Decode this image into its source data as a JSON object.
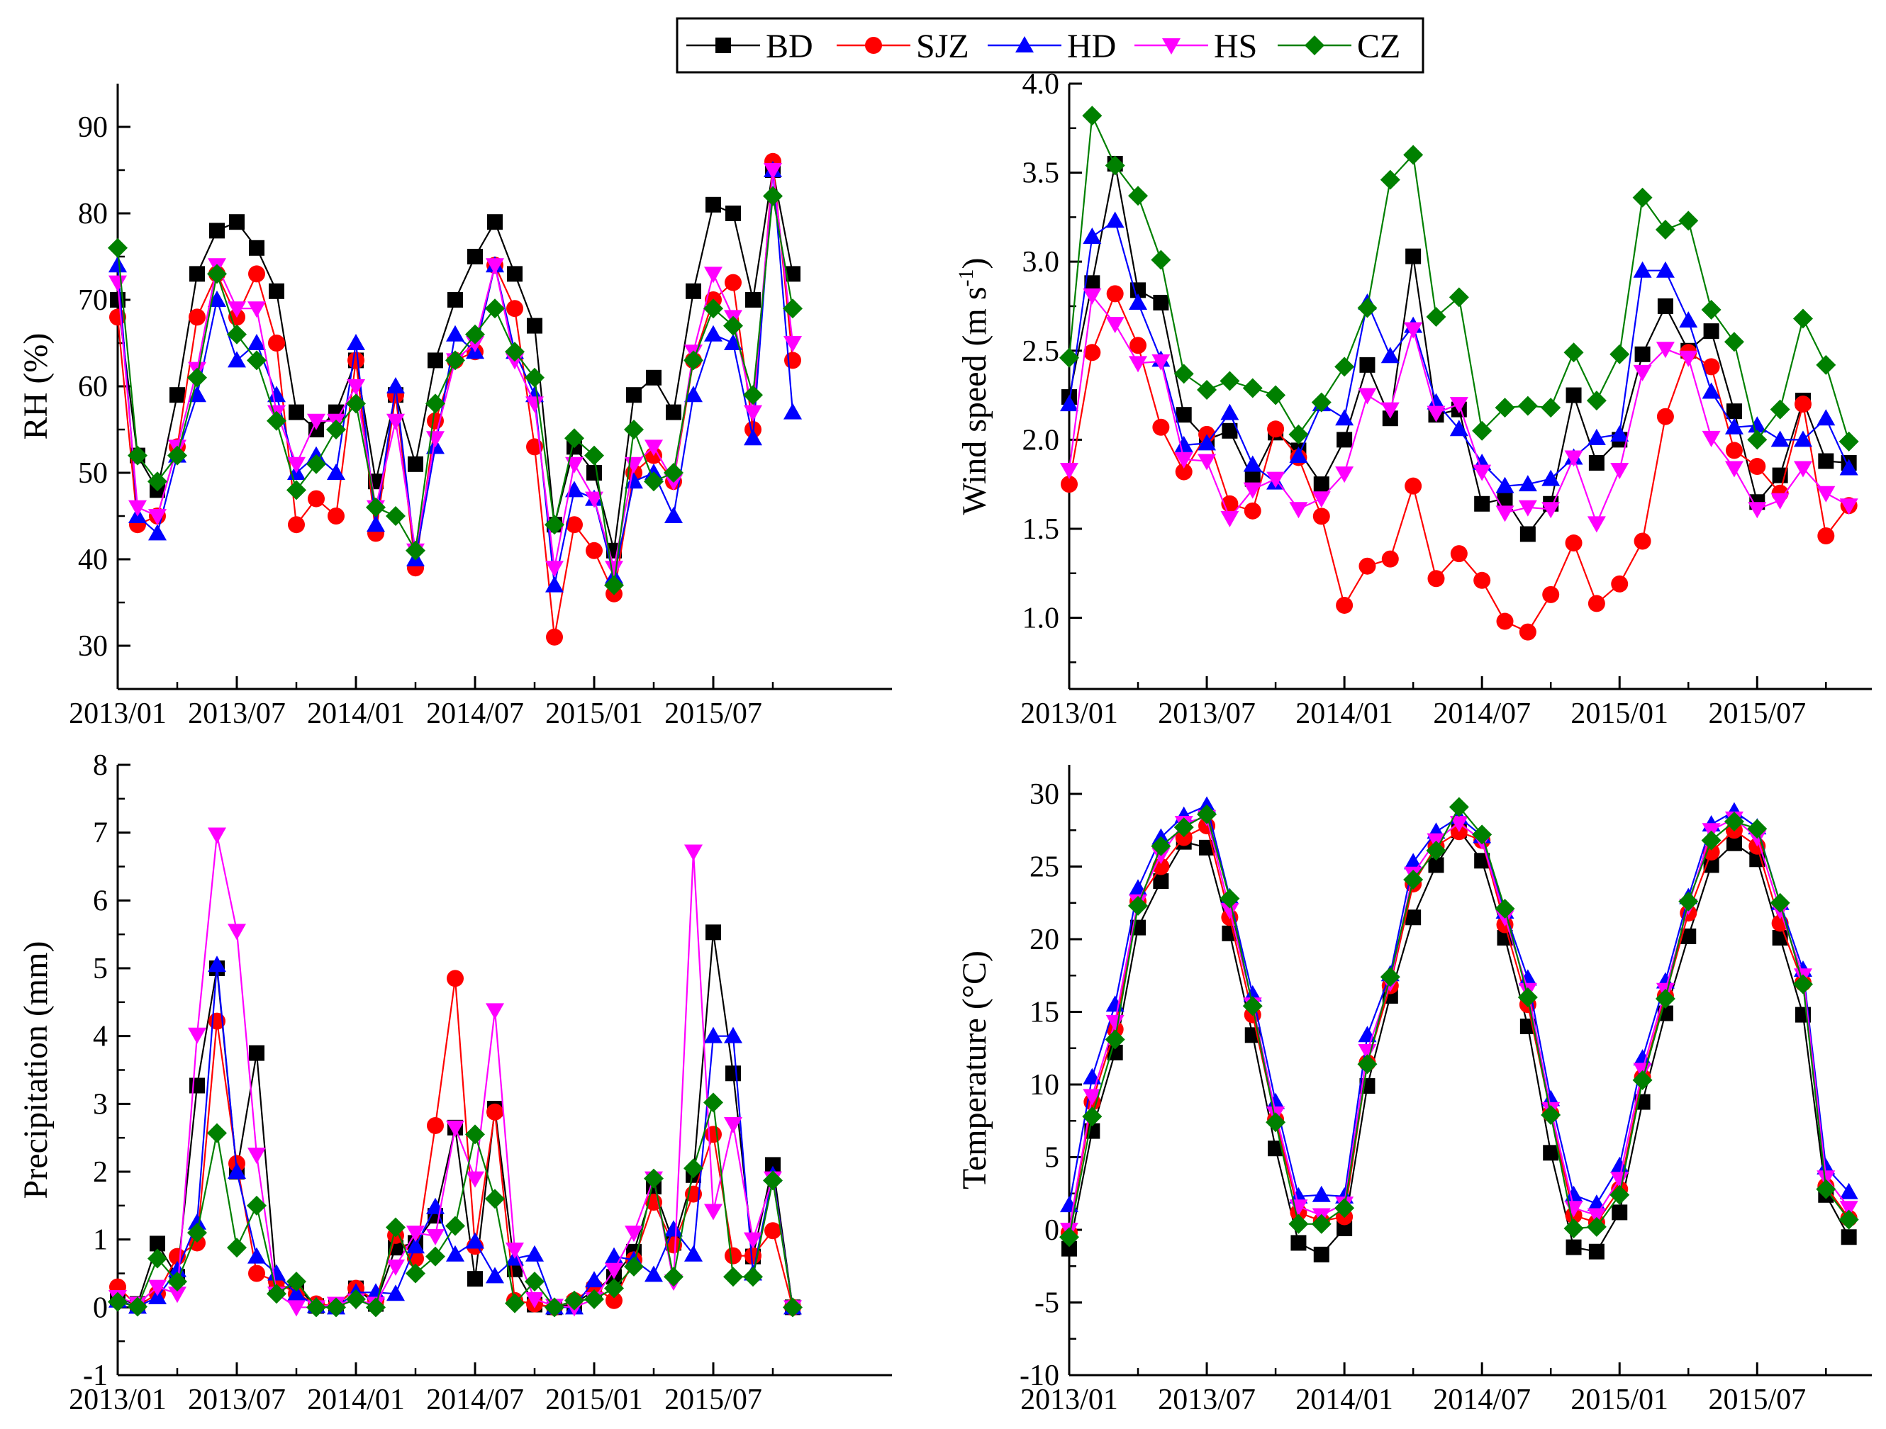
{
  "legend": {
    "entries": [
      {
        "name": "BD",
        "color": "#000000",
        "marker": "square"
      },
      {
        "name": "SJZ",
        "color": "#ff0000",
        "marker": "circle"
      },
      {
        "name": "HD",
        "color": "#0000ff",
        "marker": "triangle-up"
      },
      {
        "name": "HS",
        "color": "#ff00ff",
        "marker": "triangle-down"
      },
      {
        "name": "CZ",
        "color": "#008000",
        "marker": "diamond"
      }
    ]
  },
  "chart_data": [
    {
      "type": "line",
      "ylabel": "RH (%)",
      "xlabel": "",
      "ylim": [
        25,
        95
      ],
      "yticks": [
        30,
        40,
        50,
        60,
        70,
        80,
        90
      ],
      "x_tick_labels": [
        "2013/01",
        "2013/07",
        "2014/01",
        "2014/07",
        "2015/01",
        "2015/07"
      ],
      "x_tick_month_index": [
        0,
        6,
        12,
        18,
        24,
        30
      ],
      "xlim_month_index": [
        0,
        39
      ],
      "series": [
        {
          "name": "BD",
          "values": [
            70,
            52,
            48,
            59,
            73,
            78,
            79,
            76,
            71,
            57,
            55,
            57,
            63,
            49,
            59,
            51,
            63,
            70,
            75,
            79,
            73,
            67,
            44,
            53,
            50,
            41,
            59,
            61,
            57,
            71,
            81,
            80,
            70,
            85,
            73
          ]
        },
        {
          "name": "SJZ",
          "values": [
            68,
            44,
            45,
            53,
            68,
            73,
            68,
            73,
            65,
            44,
            47,
            45,
            63,
            43,
            59,
            39,
            56,
            63,
            64,
            74,
            69,
            53,
            31,
            44,
            41,
            36,
            50,
            52,
            49,
            63,
            70,
            72,
            55,
            86,
            63
          ]
        },
        {
          "name": "HD",
          "values": [
            74,
            45,
            43,
            52,
            59,
            70,
            63,
            65,
            59,
            50,
            52,
            50,
            65,
            44,
            60,
            40,
            53,
            66,
            64,
            74,
            64,
            59,
            37,
            48,
            47,
            38,
            49,
            50,
            45,
            59,
            66,
            65,
            54,
            85,
            57
          ]
        },
        {
          "name": "HS",
          "values": [
            72,
            46,
            45,
            53,
            62,
            74,
            69,
            69,
            57,
            51,
            56,
            56,
            60,
            46,
            56,
            41,
            54,
            63,
            65,
            74,
            63,
            58,
            39,
            51,
            47,
            39,
            51,
            53,
            49,
            64,
            73,
            68,
            57,
            85,
            65
          ]
        },
        {
          "name": "CZ",
          "values": [
            76,
            52,
            49,
            52,
            61,
            73,
            66,
            63,
            56,
            48,
            51,
            55,
            58,
            46,
            45,
            41,
            58,
            63,
            66,
            69,
            64,
            61,
            44,
            54,
            52,
            37,
            55,
            49,
            50,
            63,
            69,
            67,
            59,
            82,
            69
          ]
        }
      ]
    },
    {
      "type": "line",
      "ylabel": "Wind speed (m s",
      "ylabel_sup": "-1",
      "ylabel_tail": ")",
      "xlabel": "",
      "ylim": [
        0.6,
        4.0
      ],
      "yticks": [
        1.0,
        1.5,
        2.0,
        2.5,
        3.0,
        3.5,
        4.0
      ],
      "ytick_labels": [
        "1.0",
        "1.5",
        "2.0",
        "2.5",
        "3.0",
        "3.5",
        "4.0"
      ],
      "x_tick_labels": [
        "2013/01",
        "2013/07",
        "2014/01",
        "2014/07",
        "2015/01",
        "2015/07"
      ],
      "x_tick_month_index": [
        0,
        6,
        12,
        18,
        24,
        30
      ],
      "xlim_month_index": [
        0,
        35
      ],
      "series": [
        {
          "name": "BD",
          "values": [
            2.24,
            2.88,
            3.55,
            2.84,
            2.77,
            2.14,
            2.0,
            2.05,
            1.78,
            2.04,
            1.94,
            1.75,
            2.0,
            2.42,
            2.12,
            3.03,
            2.14,
            2.17,
            1.64,
            1.67,
            1.47,
            1.64,
            2.25,
            1.87,
            2.0,
            2.48,
            2.75,
            2.5,
            2.61,
            2.16,
            1.65,
            1.8,
            2.22,
            1.88,
            1.87
          ]
        },
        {
          "name": "SJZ",
          "values": [
            1.75,
            2.49,
            2.82,
            2.53,
            2.07,
            1.82,
            2.03,
            1.64,
            1.6,
            2.06,
            1.9,
            1.57,
            1.07,
            1.29,
            1.33,
            1.74,
            1.22,
            1.36,
            1.21,
            0.98,
            0.92,
            1.13,
            1.42,
            1.08,
            1.19,
            1.43,
            2.13,
            2.49,
            2.41,
            1.94,
            1.85,
            1.7,
            2.2,
            1.46,
            1.63
          ]
        },
        {
          "name": "HD",
          "values": [
            2.2,
            3.14,
            3.23,
            2.77,
            2.45,
            1.97,
            1.98,
            2.15,
            1.86,
            1.76,
            1.91,
            2.2,
            2.12,
            2.77,
            2.47,
            2.64,
            2.21,
            2.06,
            1.87,
            1.74,
            1.75,
            1.78,
            1.9,
            2.01,
            2.03,
            2.95,
            2.95,
            2.67,
            2.27,
            2.07,
            2.08,
            2.0,
            2.0,
            2.12,
            1.84
          ]
        },
        {
          "name": "HS",
          "values": [
            1.83,
            2.81,
            2.65,
            2.43,
            2.44,
            1.89,
            1.88,
            1.56,
            1.72,
            1.78,
            1.61,
            1.67,
            1.81,
            2.25,
            2.17,
            2.62,
            2.15,
            2.2,
            1.82,
            1.59,
            1.62,
            1.61,
            1.9,
            1.53,
            1.83,
            2.38,
            2.51,
            2.46,
            2.01,
            1.84,
            1.61,
            1.66,
            1.84,
            1.7,
            1.63
          ]
        },
        {
          "name": "CZ",
          "values": [
            2.46,
            3.82,
            3.54,
            3.37,
            3.01,
            2.37,
            2.28,
            2.33,
            2.29,
            2.25,
            2.03,
            2.21,
            2.41,
            2.74,
            3.46,
            3.6,
            2.69,
            2.8,
            2.05,
            2.18,
            2.19,
            2.18,
            2.49,
            2.22,
            2.48,
            3.36,
            3.18,
            3.23,
            2.73,
            2.55,
            2.0,
            2.17,
            2.68,
            2.42,
            1.99
          ]
        }
      ]
    },
    {
      "type": "line",
      "ylabel": "Precipitation (mm)",
      "xlabel": "",
      "ylim": [
        -1,
        8
      ],
      "yticks": [
        -1,
        0,
        1,
        2,
        3,
        4,
        5,
        6,
        7,
        8
      ],
      "x_tick_labels": [
        "2013/01",
        "2013/07",
        "2014/01",
        "2014/07",
        "2015/01",
        "2015/07"
      ],
      "x_tick_month_index": [
        0,
        6,
        12,
        18,
        24,
        30
      ],
      "xlim_month_index": [
        0,
        39
      ],
      "series": [
        {
          "name": "BD",
          "values": [
            0.12,
            0.05,
            0.94,
            0.45,
            3.27,
            5.0,
            2.0,
            3.75,
            0.3,
            0.3,
            0.02,
            0.03,
            0.28,
            0.05,
            0.88,
            0.95,
            1.35,
            2.65,
            0.42,
            2.93,
            0.56,
            0.04,
            0.0,
            0.05,
            0.25,
            0.45,
            0.82,
            1.78,
            0.95,
            1.95,
            5.53,
            3.45,
            0.75,
            2.1,
            0.0
          ]
        },
        {
          "name": "SJZ",
          "values": [
            0.3,
            0.02,
            0.2,
            0.75,
            0.95,
            4.22,
            2.12,
            0.5,
            0.38,
            0.2,
            0.05,
            0.02,
            0.28,
            0.1,
            1.06,
            0.72,
            2.68,
            4.85,
            0.9,
            2.88,
            0.1,
            0.05,
            0.0,
            0.1,
            0.3,
            0.1,
            0.7,
            1.55,
            0.92,
            1.67,
            2.55,
            0.76,
            0.76,
            1.13,
            0.0
          ]
        },
        {
          "name": "HD",
          "values": [
            0.1,
            0.01,
            0.15,
            0.55,
            1.25,
            5.05,
            2.0,
            0.75,
            0.5,
            0.2,
            0.02,
            0.0,
            0.22,
            0.22,
            0.2,
            0.9,
            1.48,
            0.78,
            0.97,
            0.46,
            0.72,
            0.78,
            0.0,
            0.0,
            0.4,
            0.75,
            0.7,
            0.48,
            1.15,
            0.78,
            4.0,
            4.0,
            0.5,
            1.95,
            0.0
          ]
        },
        {
          "name": "HS",
          "values": [
            0.15,
            0.05,
            0.3,
            0.2,
            4.02,
            6.97,
            5.55,
            2.25,
            0.2,
            0.0,
            0.0,
            0.05,
            0.1,
            0.05,
            0.6,
            1.1,
            1.05,
            2.65,
            1.9,
            4.38,
            0.85,
            0.12,
            0.02,
            0.0,
            0.12,
            0.55,
            1.1,
            1.9,
            0.38,
            6.72,
            1.42,
            2.7,
            1.0,
            1.9,
            0.0
          ]
        },
        {
          "name": "CZ",
          "values": [
            0.08,
            0.01,
            0.72,
            0.38,
            1.1,
            2.57,
            0.88,
            1.5,
            0.2,
            0.38,
            0.0,
            0.0,
            0.12,
            0.0,
            1.18,
            0.5,
            0.75,
            1.2,
            2.55,
            1.6,
            0.06,
            0.38,
            0.0,
            0.1,
            0.12,
            0.28,
            0.6,
            1.9,
            0.45,
            2.05,
            3.02,
            0.45,
            0.45,
            1.87,
            0.0
          ]
        }
      ]
    },
    {
      "type": "line",
      "ylabel": "Temperature (°C)",
      "xlabel": "",
      "ylim": [
        -10,
        32
      ],
      "yticks": [
        -10,
        -5,
        0,
        5,
        10,
        15,
        20,
        25,
        30
      ],
      "x_tick_labels": [
        "2013/01",
        "2013/07",
        "2014/01",
        "2014/07",
        "2015/01",
        "2015/07"
      ],
      "x_tick_month_index": [
        0,
        6,
        12,
        18,
        24,
        30
      ],
      "xlim_month_index": [
        0,
        35
      ],
      "series": [
        {
          "name": "BD",
          "values": [
            -1.3,
            6.8,
            12.2,
            20.8,
            24.0,
            26.7,
            26.3,
            20.4,
            13.4,
            5.6,
            -0.9,
            -1.7,
            0.1,
            9.9,
            16.1,
            21.5,
            25.1,
            27.5,
            25.4,
            20.1,
            14.0,
            5.3,
            -1.2,
            -1.5,
            1.2,
            8.8,
            14.9,
            20.2,
            25.1,
            26.6,
            25.5,
            20.1,
            14.8,
            2.4,
            -0.5
          ]
        },
        {
          "name": "SJZ",
          "values": [
            -0.2,
            8.8,
            13.8,
            22.6,
            25.0,
            27.0,
            27.8,
            21.5,
            14.8,
            7.6,
            1.2,
            0.6,
            0.9,
            11.5,
            16.8,
            23.8,
            26.4,
            27.4,
            26.8,
            21.0,
            15.5,
            8.0,
            1.0,
            0.5,
            2.8,
            10.5,
            16.1,
            21.8,
            26.0,
            27.5,
            26.4,
            21.1,
            17.0,
            3.0,
            0.8
          ]
        },
        {
          "name": "HD",
          "values": [
            1.7,
            10.5,
            15.5,
            23.5,
            27.0,
            28.5,
            29.2,
            22.9,
            16.2,
            8.8,
            2.3,
            2.4,
            2.3,
            13.4,
            17.6,
            25.3,
            27.4,
            28.4,
            27.1,
            21.9,
            17.3,
            9.0,
            2.4,
            1.8,
            4.4,
            11.8,
            17.1,
            22.9,
            27.9,
            28.8,
            27.7,
            22.5,
            17.9,
            4.3,
            2.6
          ]
        },
        {
          "name": "HS",
          "values": [
            0.0,
            9.2,
            14.3,
            22.6,
            25.8,
            28.0,
            28.4,
            22.0,
            15.5,
            8.0,
            1.6,
            1.0,
            1.8,
            12.3,
            17.0,
            24.5,
            26.8,
            28.0,
            26.8,
            21.5,
            16.5,
            8.3,
            1.5,
            1.0,
            3.5,
            11.0,
            16.5,
            22.3,
            27.5,
            28.3,
            27.0,
            22.0,
            17.5,
            3.6,
            1.5
          ]
        },
        {
          "name": "CZ",
          "values": [
            -0.5,
            7.8,
            13.1,
            22.3,
            26.4,
            27.7,
            28.6,
            22.8,
            15.4,
            7.4,
            0.4,
            0.4,
            1.5,
            11.4,
            17.4,
            24.1,
            26.1,
            29.1,
            27.2,
            22.1,
            16.0,
            7.9,
            0.1,
            0.2,
            2.4,
            10.3,
            15.9,
            22.6,
            26.8,
            28.1,
            27.6,
            22.5,
            16.9,
            2.8,
            0.7
          ]
        }
      ]
    }
  ]
}
